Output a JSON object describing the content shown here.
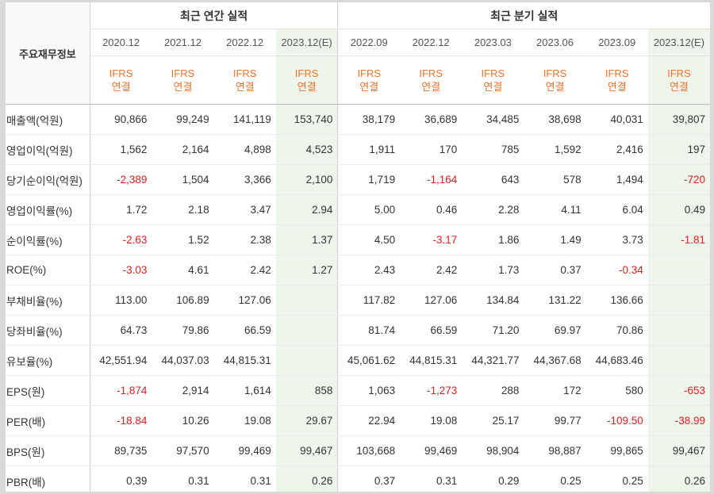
{
  "table": {
    "row_header_label": "주요재무정보",
    "groups": {
      "annual": "최근 연간 실적",
      "quarterly": "최근 분기 실적"
    },
    "periods": [
      "2020.12",
      "2021.12",
      "2022.12",
      "2023.12(E)",
      "2022.09",
      "2022.12",
      "2023.03",
      "2023.06",
      "2023.09",
      "2023.12(E)"
    ],
    "standard_line1": "IFRS",
    "standard_line2": "연결",
    "rows": [
      {
        "label": "매출액(억원)",
        "values": [
          "90,866",
          "99,249",
          "141,119",
          "153,740",
          "38,179",
          "36,689",
          "34,485",
          "38,698",
          "40,031",
          "39,807"
        ]
      },
      {
        "label": "영업이익(억원)",
        "values": [
          "1,562",
          "2,164",
          "4,898",
          "4,523",
          "1,911",
          "170",
          "785",
          "1,592",
          "2,416",
          "197"
        ]
      },
      {
        "label": "당기순이익(억원)",
        "values": [
          "-2,389",
          "1,504",
          "3,366",
          "2,100",
          "1,719",
          "-1,164",
          "643",
          "578",
          "1,494",
          "-720"
        ]
      },
      {
        "label": "영업이익률(%)",
        "values": [
          "1.72",
          "2.18",
          "3.47",
          "2.94",
          "5.00",
          "0.46",
          "2.28",
          "4.11",
          "6.04",
          "0.49"
        ]
      },
      {
        "label": "순이익률(%)",
        "values": [
          "-2.63",
          "1.52",
          "2.38",
          "1.37",
          "4.50",
          "-3.17",
          "1.86",
          "1.49",
          "3.73",
          "-1.81"
        ]
      },
      {
        "label": "ROE(%)",
        "values": [
          "-3.03",
          "4.61",
          "2.42",
          "1.27",
          "2.43",
          "2.42",
          "1.73",
          "0.37",
          "-0.34",
          ""
        ]
      },
      {
        "label": "부채비율(%)",
        "values": [
          "113.00",
          "106.89",
          "127.06",
          "",
          "117.82",
          "127.06",
          "134.84",
          "131.22",
          "136.66",
          ""
        ]
      },
      {
        "label": "당좌비율(%)",
        "values": [
          "64.73",
          "79.86",
          "66.59",
          "",
          "81.74",
          "66.59",
          "71.20",
          "69.97",
          "70.86",
          ""
        ]
      },
      {
        "label": "유보율(%)",
        "values": [
          "42,551.94",
          "44,037.03",
          "44,815.31",
          "",
          "45,061.62",
          "44,815.31",
          "44,321.77",
          "44,367.68",
          "44,683.46",
          ""
        ]
      },
      {
        "label": "EPS(원)",
        "values": [
          "-1,874",
          "2,914",
          "1,614",
          "858",
          "1,063",
          "-1,273",
          "288",
          "172",
          "580",
          "-653"
        ]
      },
      {
        "label": "PER(배)",
        "values": [
          "-18.84",
          "10.26",
          "19.08",
          "29.67",
          "22.94",
          "19.08",
          "25.17",
          "99.77",
          "-109.50",
          "-38.99"
        ]
      },
      {
        "label": "BPS(원)",
        "values": [
          "89,735",
          "97,570",
          "99,469",
          "99,467",
          "103,668",
          "99,469",
          "98,904",
          "98,887",
          "99,865",
          "99,467"
        ]
      },
      {
        "label": "PBR(배)",
        "values": [
          "0.39",
          "0.31",
          "0.31",
          "0.26",
          "0.37",
          "0.31",
          "0.29",
          "0.25",
          "0.25",
          "0.26"
        ]
      }
    ],
    "colors": {
      "negative": "#e02020",
      "standard": "#e8742c",
      "estimate_bg": "#eef6ec"
    }
  }
}
